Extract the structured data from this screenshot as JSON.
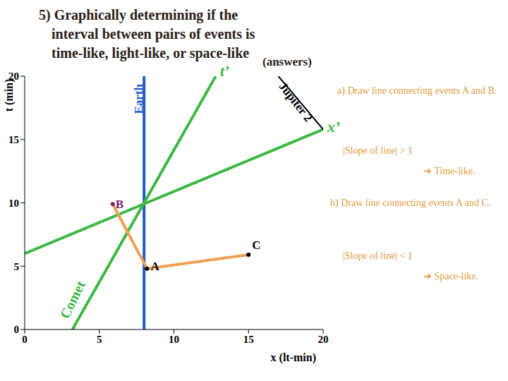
{
  "chart_data": {
    "type": "line",
    "title": "5) Graphically determining if the interval between pairs of events is time-like, light-like, or space-like",
    "subtitle": "(answers)",
    "x_label": "x (lt-min)",
    "y_label": "t (min)",
    "xlim": [
      0,
      20
    ],
    "xticks": [
      0,
      5,
      10,
      15,
      20
    ],
    "ylim": [
      0,
      20
    ],
    "yticks": [
      0,
      5,
      10,
      15,
      20
    ],
    "grid": false,
    "series": [
      {
        "color": "#1e5bc6",
        "x": [
          8,
          8
        ],
        "values": [
          0,
          20
        ]
      },
      {
        "color": "#3cb843",
        "x": [
          3.2,
          12.8
        ],
        "values": [
          0,
          20
        ]
      },
      {
        "color": "#3cb843",
        "x": [
          0,
          20
        ],
        "values": [
          6,
          15.8
        ]
      },
      {
        "color": "#000000",
        "x": [
          17,
          20
        ],
        "values": [
          20,
          15.8
        ]
      },
      {
        "color": "#f0a050",
        "x": [
          8.2,
          5.9
        ],
        "values": [
          4.8,
          9.9
        ]
      },
      {
        "color": "#f0a050",
        "x": [
          8.2,
          15
        ],
        "values": [
          4.8,
          5.9
        ]
      }
    ],
    "events": [
      {
        "label": "A",
        "x": 8.2,
        "y": 4.8,
        "color": "#000000"
      },
      {
        "label": "B",
        "x": 5.9,
        "y": 9.9,
        "color": "#7a1f7a"
      },
      {
        "label": "C",
        "x": 15,
        "y": 5.9,
        "color": "#000000"
      }
    ],
    "annotations": [
      {
        "text": "t’",
        "x": 13.4,
        "y": 20.3,
        "color": "#3cb843"
      },
      {
        "text": "x’",
        "x": 20.7,
        "y": 15.9,
        "color": "#3cb843"
      },
      {
        "text": "Earth",
        "x": 7.7,
        "y": 18.2,
        "color": "#1e5bc6"
      },
      {
        "text": "Jupiter 2",
        "x": 18.1,
        "y": 17.9,
        "color": "#000000"
      },
      {
        "text": "Comet",
        "x": 3.3,
        "y": 2.3,
        "color": "#3cb843"
      }
    ],
    "notes": [
      "a) Draw line connecting events A and B.",
      "|Slope of line| > 1",
      "➔ Time-like.",
      "b) Draw line connecting events A and C.",
      "|Slope of line| < 1",
      "➔ Space-like."
    ]
  }
}
